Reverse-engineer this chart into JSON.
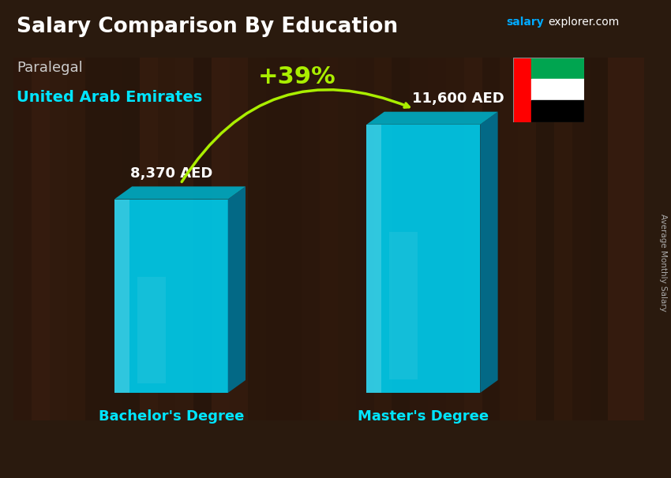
{
  "title": "Salary Comparison By Education",
  "subtitle": "Paralegal",
  "country": "United Arab Emirates",
  "categories": [
    "Bachelor's Degree",
    "Master's Degree"
  ],
  "values": [
    8370,
    11600
  ],
  "value_labels": [
    "8,370 AED",
    "11,600 AED"
  ],
  "pct_change": "+39%",
  "color_front": "#00c8e8",
  "color_top": "#00a8c0",
  "color_side": "#007090",
  "pct_color": "#aaee00",
  "title_color": "#ffffff",
  "subtitle_color": "#cccccc",
  "country_color": "#00e5ff",
  "bg_color": "#2a1a0e",
  "ylabel_text": "Average Monthly Salary",
  "ylabel_color": "#aaaaaa",
  "salary_text_color": "#ffffff",
  "salary_color1": "#00aaff",
  "salary_color2": "#ffffff",
  "cat_color": "#00e5ff",
  "flag_red": "#FF0000",
  "flag_green": "#00A550",
  "flag_white": "#FFFFFF",
  "flag_black": "#000000"
}
